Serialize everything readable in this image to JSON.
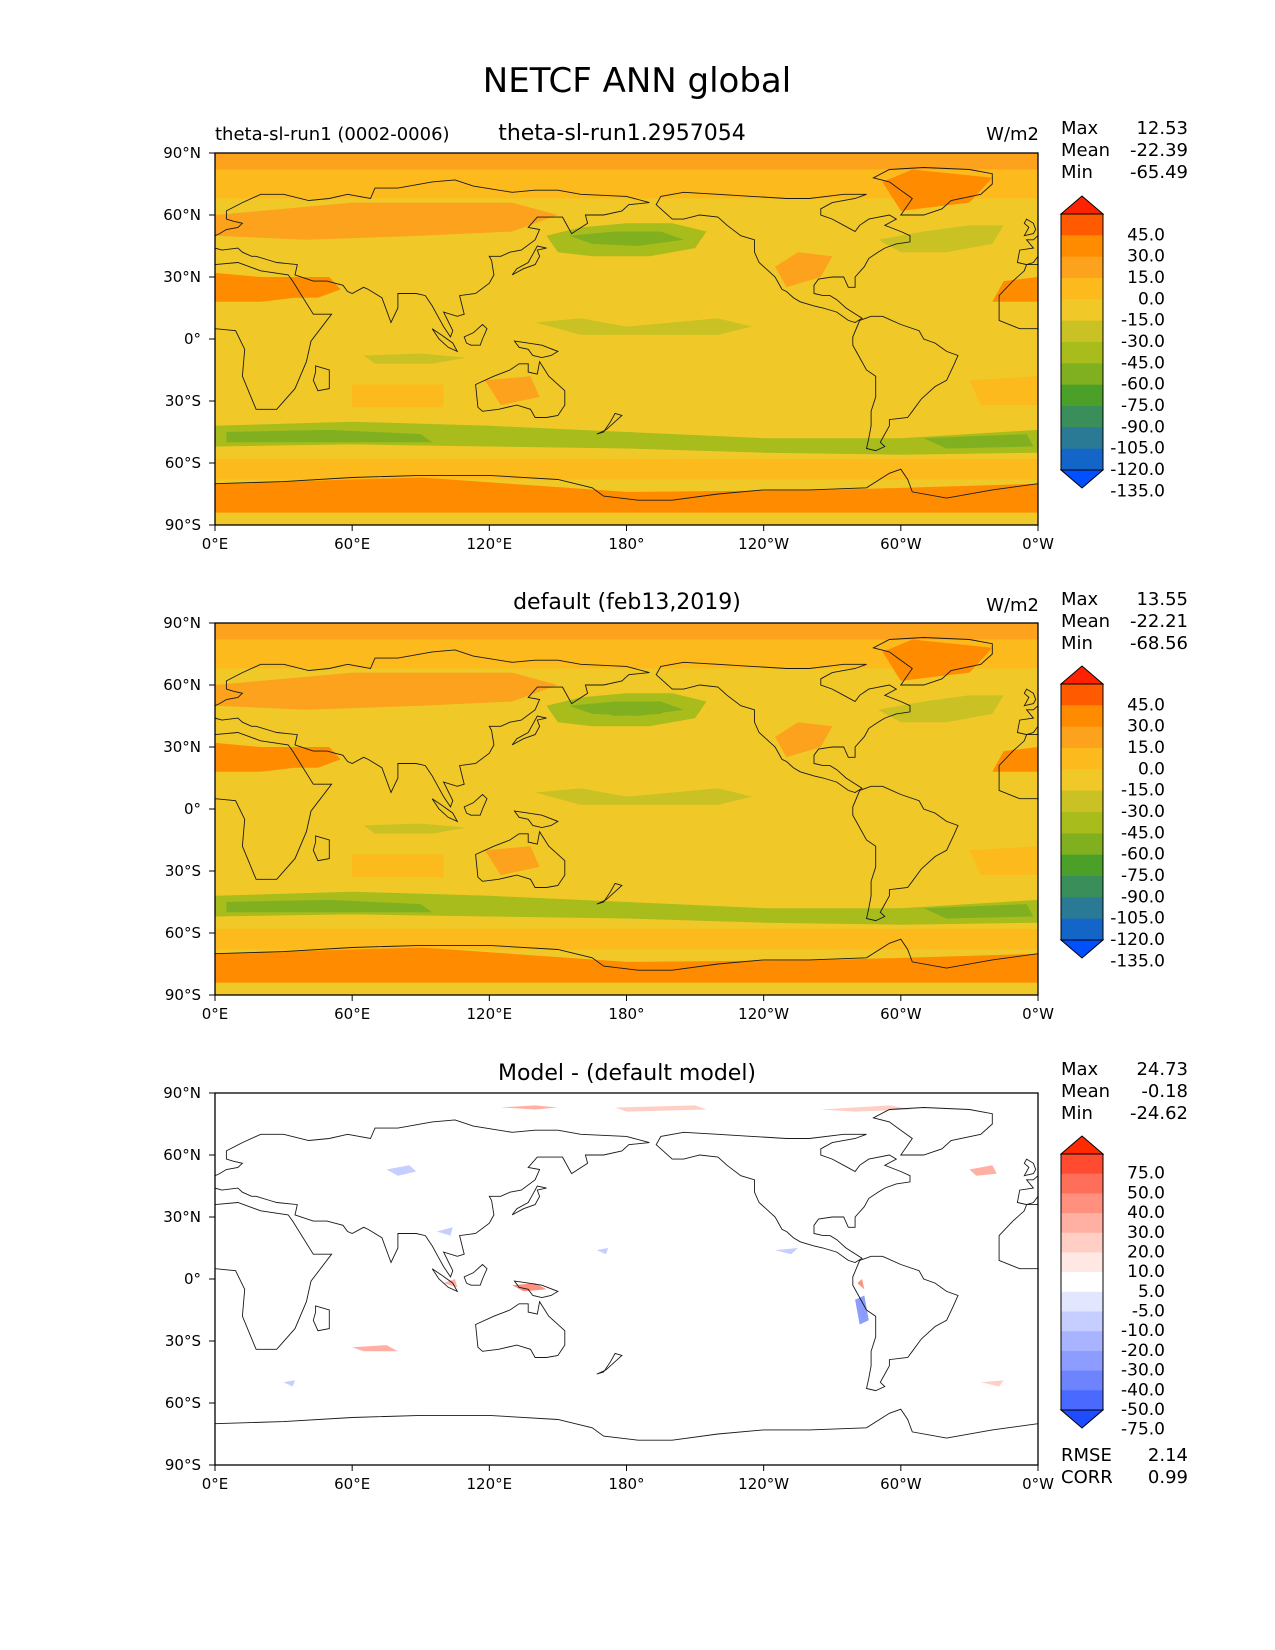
{
  "figure": {
    "title": "NETCF ANN global"
  },
  "axes": {
    "lat_ticks": [
      "90°N",
      "60°N",
      "30°N",
      "0°",
      "30°S",
      "60°S",
      "90°S"
    ],
    "lon_ticks": [
      "0°E",
      "60°E",
      "120°E",
      "180°",
      "120°W",
      "60°W",
      "0°W"
    ]
  },
  "panels": [
    {
      "left_label": "theta-sl-run1 (0002-0006)",
      "title": "theta-sl-run1.2957054",
      "units": "W/m2",
      "stats": [
        {
          "label": "Max",
          "value": "12.53"
        },
        {
          "label": "Mean",
          "value": "-22.39"
        },
        {
          "label": "Min",
          "value": "-65.49"
        }
      ],
      "colorbar": {
        "labels": [
          "45.0",
          "30.0",
          "15.0",
          "0.0",
          "-15.0",
          "-30.0",
          "-45.0",
          "-60.0",
          "-75.0",
          "-90.0",
          "-105.0",
          "-120.0",
          "-135.0"
        ],
        "colors": [
          "#ff2200",
          "#ff5a00",
          "#ff8c00",
          "#fca21c",
          "#fcba1c",
          "#f0c928",
          "#cac224",
          "#a8bc1c",
          "#80b020",
          "#4aa028",
          "#3a8e5a",
          "#2a7a96",
          "#1366c8",
          "#0050ff"
        ]
      },
      "field": "model"
    },
    {
      "left_label": "",
      "title": "default (feb13,2019)",
      "units": "W/m2",
      "stats": [
        {
          "label": "Max",
          "value": "13.55"
        },
        {
          "label": "Mean",
          "value": "-22.21"
        },
        {
          "label": "Min",
          "value": "-68.56"
        }
      ],
      "colorbar": {
        "labels": [
          "45.0",
          "30.0",
          "15.0",
          "0.0",
          "-15.0",
          "-30.0",
          "-45.0",
          "-60.0",
          "-75.0",
          "-90.0",
          "-105.0",
          "-120.0",
          "-135.0"
        ],
        "colors": [
          "#ff2200",
          "#ff5a00",
          "#ff8c00",
          "#fca21c",
          "#fcba1c",
          "#f0c928",
          "#cac224",
          "#a8bc1c",
          "#80b020",
          "#4aa028",
          "#3a8e5a",
          "#2a7a96",
          "#1366c8",
          "#0050ff"
        ]
      },
      "field": "reference"
    },
    {
      "left_label": "",
      "title": "Model - (default model)",
      "units": "",
      "stats": [
        {
          "label": "Max",
          "value": "24.73"
        },
        {
          "label": "Mean",
          "value": "-0.18"
        },
        {
          "label": "Min",
          "value": "-24.62"
        }
      ],
      "colorbar": {
        "labels": [
          "75.0",
          "50.0",
          "40.0",
          "30.0",
          "20.0",
          "10.0",
          "5.0",
          "-5.0",
          "-10.0",
          "-20.0",
          "-30.0",
          "-40.0",
          "-50.0",
          "-75.0"
        ],
        "colors": [
          "#ff2a00",
          "#ff4c30",
          "#ff6e58",
          "#ff907e",
          "#ffb0a2",
          "#ffcfc6",
          "#ffe8e4",
          "#ffffff",
          "#e2e6ff",
          "#c6cdff",
          "#a8b4ff",
          "#8c9cff",
          "#6e84ff",
          "#4a6aff",
          "#1f4cff"
        ]
      },
      "extra_stats": [
        {
          "label": "RMSE",
          "value": "2.14"
        },
        {
          "label": "CORR",
          "value": "0.99"
        }
      ],
      "field": "difference"
    }
  ]
}
